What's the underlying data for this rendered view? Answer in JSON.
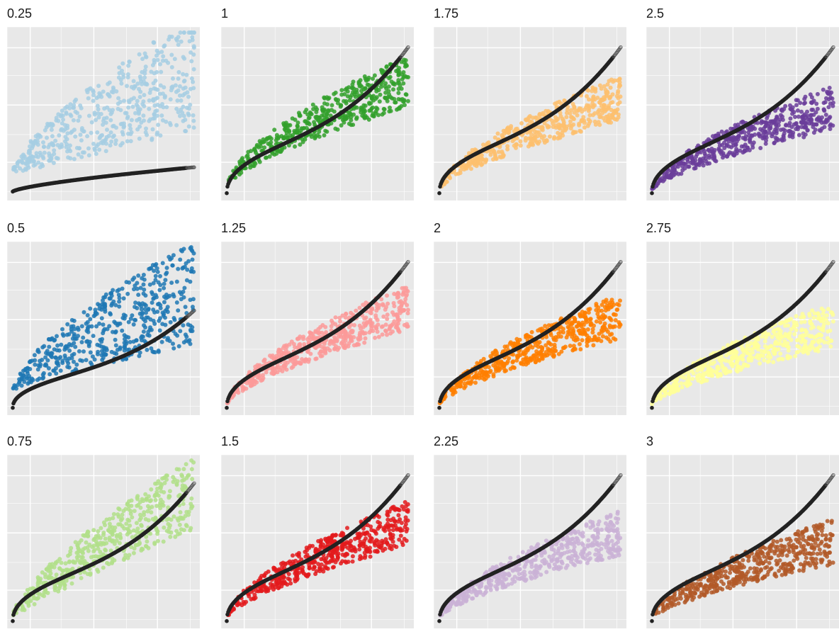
{
  "figure": {
    "panel_bg": "#e8e8e8",
    "grid_color": "#ffffff",
    "reference_color": "#222222",
    "reference_endpoint_color": "#555555"
  },
  "chart_data": [
    {
      "type": "scatter",
      "title": "0.25",
      "power": 0.25,
      "color": "#a6cee3",
      "xlim": [
        0,
        1
      ],
      "ylim": [
        0,
        1
      ],
      "reference_curve": {
        "scale": 0.15,
        "shape": "sqrt"
      },
      "grid": true
    },
    {
      "type": "scatter",
      "title": "0.5",
      "power": 0.5,
      "color": "#1f78b4",
      "xlim": [
        0,
        1
      ],
      "ylim": [
        0,
        1
      ],
      "reference_curve": {
        "scale": 0.6,
        "shape": "sigmoid-ish"
      },
      "grid": true
    },
    {
      "type": "scatter",
      "title": "0.75",
      "power": 0.75,
      "color": "#b2df8a",
      "xlim": [
        0,
        1
      ],
      "ylim": [
        0,
        1
      ],
      "reference_curve": {
        "scale": 0.85,
        "shape": "sigmoid-ish"
      },
      "grid": true
    },
    {
      "type": "scatter",
      "title": "1",
      "power": 1.0,
      "color": "#33a02c",
      "xlim": [
        0,
        1
      ],
      "ylim": [
        0,
        1
      ],
      "reference_curve": {
        "scale": 0.9,
        "shape": "sigmoid-ish"
      },
      "grid": true
    },
    {
      "type": "scatter",
      "title": "1.25",
      "power": 1.25,
      "color": "#fb9a99",
      "xlim": [
        0,
        1
      ],
      "ylim": [
        0,
        1
      ],
      "reference_curve": {
        "scale": 0.9,
        "shape": "sigmoid-ish"
      },
      "grid": true
    },
    {
      "type": "scatter",
      "title": "1.5",
      "power": 1.5,
      "color": "#e31a1c",
      "xlim": [
        0,
        1
      ],
      "ylim": [
        0,
        1
      ],
      "reference_curve": {
        "scale": 0.9,
        "shape": "sigmoid-ish"
      },
      "grid": true
    },
    {
      "type": "scatter",
      "title": "1.75",
      "power": 1.75,
      "color": "#fdbf6f",
      "xlim": [
        0,
        1
      ],
      "ylim": [
        0,
        1
      ],
      "reference_curve": {
        "scale": 0.9,
        "shape": "sigmoid-ish"
      },
      "grid": true
    },
    {
      "type": "scatter",
      "title": "2",
      "power": 2.0,
      "color": "#ff7f00",
      "xlim": [
        0,
        1
      ],
      "ylim": [
        0,
        1
      ],
      "reference_curve": {
        "scale": 0.9,
        "shape": "sigmoid-ish"
      },
      "grid": true
    },
    {
      "type": "scatter",
      "title": "2.25",
      "power": 2.25,
      "color": "#cab2d6",
      "xlim": [
        0,
        1
      ],
      "ylim": [
        0,
        1
      ],
      "reference_curve": {
        "scale": 0.9,
        "shape": "sigmoid-ish"
      },
      "grid": true
    },
    {
      "type": "scatter",
      "title": "2.5",
      "power": 2.5,
      "color": "#6a3d9a",
      "xlim": [
        0,
        1
      ],
      "ylim": [
        0,
        1
      ],
      "reference_curve": {
        "scale": 0.9,
        "shape": "sigmoid-ish"
      },
      "grid": true
    },
    {
      "type": "scatter",
      "title": "2.75",
      "power": 2.75,
      "color": "#ffff99",
      "xlim": [
        0,
        1
      ],
      "ylim": [
        0,
        1
      ],
      "reference_curve": {
        "scale": 0.9,
        "shape": "sigmoid-ish"
      },
      "grid": true
    },
    {
      "type": "scatter",
      "title": "3",
      "power": 3.0,
      "color": "#b15928",
      "xlim": [
        0,
        1
      ],
      "ylim": [
        0,
        1
      ],
      "reference_curve": {
        "scale": 0.9,
        "shape": "sigmoid-ish"
      },
      "grid": true
    }
  ]
}
